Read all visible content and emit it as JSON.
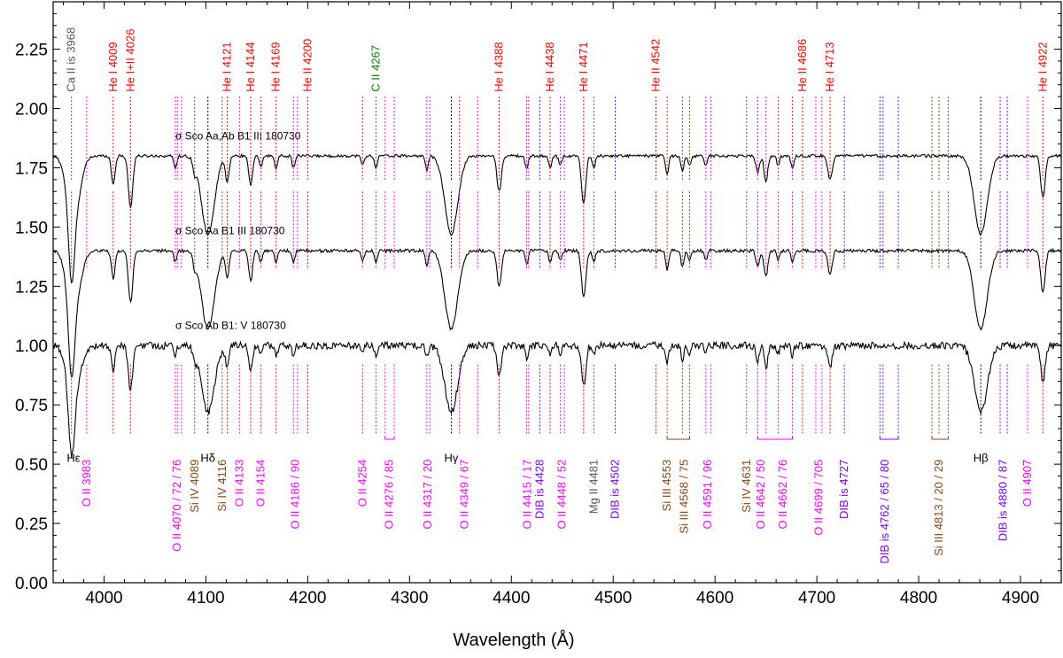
{
  "chart_data": {
    "type": "line",
    "xlabel": "Wavelength (Å)",
    "ylabel": "",
    "xlim": [
      3950,
      4940
    ],
    "ylim": [
      0.0,
      2.45
    ],
    "x_ticks": [
      4000,
      4100,
      4200,
      4300,
      4400,
      4500,
      4600,
      4700,
      4800,
      4900
    ],
    "y_ticks": [
      0.0,
      0.25,
      0.5,
      0.75,
      1.0,
      1.25,
      1.5,
      1.75,
      2.0,
      2.25
    ],
    "x_tick_labels": [
      "4000",
      "4100",
      "4200",
      "4300",
      "4400",
      "4500",
      "4600",
      "4700",
      "4800",
      "4900"
    ],
    "y_tick_labels": [
      "0.00",
      "0.25",
      "0.50",
      "0.75",
      "1.00",
      "1.25",
      "1.50",
      "1.75",
      "2.00",
      "2.25"
    ],
    "colors": {
      "he": "#ff0000",
      "ca": "#555555",
      "c": "#008800",
      "o": "#ff00ff",
      "si": "#8b4513",
      "dib": "#8000ff",
      "mg": "#555555",
      "h": "#000000",
      "spectrum": "#000000"
    },
    "series": [
      {
        "name": "σ Sco Aa,Ab   B1 III 180730",
        "continuum": 1.8,
        "noise": 0.012,
        "depth_scale": 1.0,
        "label_x": 4070,
        "label_y": 1.87
      },
      {
        "name": "σ Sco Aa   B1 III 180730",
        "continuum": 1.4,
        "noise": 0.014,
        "depth_scale": 1.0,
        "label_x": 4070,
        "label_y": 1.47
      },
      {
        "name": "σ Sco Ab   B1: V 180730",
        "continuum": 1.0,
        "noise": 0.03,
        "depth_scale": 0.85,
        "label_x": 4070,
        "label_y": 1.07
      }
    ],
    "lines_top": [
      {
        "label": "Ca II is 3968",
        "wl": 3968,
        "group": "ca"
      },
      {
        "label": "He I 4009",
        "wl": 4009,
        "group": "he"
      },
      {
        "label": "He I+II 4026",
        "wl": 4026,
        "group": "he"
      },
      {
        "label": "He I 4121",
        "wl": 4121,
        "group": "he"
      },
      {
        "label": "He I 4144",
        "wl": 4144,
        "group": "he"
      },
      {
        "label": "He I 4169",
        "wl": 4169,
        "group": "he"
      },
      {
        "label": "He II 4200",
        "wl": 4200,
        "group": "he"
      },
      {
        "label": "C II 4267",
        "wl": 4267,
        "group": "c"
      },
      {
        "label": "He I 4388",
        "wl": 4388,
        "group": "he"
      },
      {
        "label": "He I 4438",
        "wl": 4438,
        "group": "he"
      },
      {
        "label": "He I 4471",
        "wl": 4471,
        "group": "he"
      },
      {
        "label": "He II 4542",
        "wl": 4542,
        "group": "he"
      },
      {
        "label": "He II 4686",
        "wl": 4686,
        "group": "he"
      },
      {
        "label": "He I 4713",
        "wl": 4713,
        "group": "he"
      },
      {
        "label": "He I 4922",
        "wl": 4922,
        "group": "he"
      }
    ],
    "lines_bottom": [
      {
        "label": "Hε",
        "wl": 3970,
        "group": "h",
        "horizontal": true
      },
      {
        "label": "O II 3983",
        "wl": 3983,
        "group": "o"
      },
      {
        "label": "O II 4070 / 72 / 76",
        "wl": 4072,
        "group": "o"
      },
      {
        "label": "Si IV 4089",
        "wl": 4089,
        "group": "si"
      },
      {
        "label": "Hδ",
        "wl": 4102,
        "group": "h",
        "horizontal": true
      },
      {
        "label": "Si IV 4116",
        "wl": 4116,
        "group": "si"
      },
      {
        "label": "O II 4133",
        "wl": 4133,
        "group": "o"
      },
      {
        "label": "O II 4154",
        "wl": 4154,
        "group": "o"
      },
      {
        "label": "O II 4186 / 90",
        "wl": 4188,
        "group": "o"
      },
      {
        "label": "O II 4254",
        "wl": 4254,
        "group": "o"
      },
      {
        "label": "O II 4276 / 85",
        "wl": 4280,
        "group": "o"
      },
      {
        "label": "O II 4317 / 20",
        "wl": 4318,
        "group": "o"
      },
      {
        "label": "Hγ",
        "wl": 4341,
        "group": "h",
        "horizontal": true
      },
      {
        "label": "O II 4349 / 67",
        "wl": 4354,
        "group": "o"
      },
      {
        "label": "O II 4415 / 17",
        "wl": 4416,
        "group": "o"
      },
      {
        "label": "DIB is 4428",
        "wl": 4428,
        "group": "dib"
      },
      {
        "label": "O II 4448 / 52",
        "wl": 4450,
        "group": "o"
      },
      {
        "label": "Mg II 4481",
        "wl": 4481,
        "group": "mg"
      },
      {
        "label": "DIB is 4502",
        "wl": 4502,
        "group": "dib"
      },
      {
        "label": "Si III 4553",
        "wl": 4553,
        "group": "si"
      },
      {
        "label": "Si III 4568 / 75",
        "wl": 4570,
        "group": "si"
      },
      {
        "label": "O II 4591 / 96",
        "wl": 4593,
        "group": "o"
      },
      {
        "label": "Si IV 4631",
        "wl": 4631,
        "group": "si"
      },
      {
        "label": "O II 4642 / 50",
        "wl": 4645,
        "group": "o"
      },
      {
        "label": "O II 4662 / 76",
        "wl": 4667,
        "group": "o"
      },
      {
        "label": "O II 4699 / 705",
        "wl": 4702,
        "group": "o"
      },
      {
        "label": "DIB is 4727",
        "wl": 4727,
        "group": "dib"
      },
      {
        "label": "DIB is 4762 / 65 / 80",
        "wl": 4767,
        "group": "dib"
      },
      {
        "label": "Si III 4813 / 20 / 29",
        "wl": 4820,
        "group": "si"
      },
      {
        "label": "Hβ",
        "wl": 4861,
        "group": "h",
        "horizontal": true
      },
      {
        "label": "DIB is 4880 / 87",
        "wl": 4883,
        "group": "dib"
      },
      {
        "label": "O II 4907",
        "wl": 4907,
        "group": "o"
      }
    ],
    "marker_lines": [
      {
        "wl": 3968,
        "group": "ca"
      },
      {
        "wl": 3983,
        "group": "o"
      },
      {
        "wl": 4009,
        "group": "he"
      },
      {
        "wl": 4026,
        "group": "he"
      },
      {
        "wl": 4070,
        "group": "o"
      },
      {
        "wl": 4072,
        "group": "o"
      },
      {
        "wl": 4076,
        "group": "o"
      },
      {
        "wl": 4089,
        "group": "si"
      },
      {
        "wl": 4102,
        "group": "h"
      },
      {
        "wl": 4116,
        "group": "si"
      },
      {
        "wl": 4121,
        "group": "he"
      },
      {
        "wl": 4133,
        "group": "o"
      },
      {
        "wl": 4144,
        "group": "he"
      },
      {
        "wl": 4154,
        "group": "o"
      },
      {
        "wl": 4169,
        "group": "he"
      },
      {
        "wl": 4186,
        "group": "o"
      },
      {
        "wl": 4190,
        "group": "o"
      },
      {
        "wl": 4200,
        "group": "he"
      },
      {
        "wl": 4254,
        "group": "o"
      },
      {
        "wl": 4267,
        "group": "c"
      },
      {
        "wl": 4276,
        "group": "o"
      },
      {
        "wl": 4285,
        "group": "o"
      },
      {
        "wl": 4317,
        "group": "o"
      },
      {
        "wl": 4320,
        "group": "o"
      },
      {
        "wl": 4341,
        "group": "h"
      },
      {
        "wl": 4349,
        "group": "o"
      },
      {
        "wl": 4367,
        "group": "o"
      },
      {
        "wl": 4388,
        "group": "he"
      },
      {
        "wl": 4415,
        "group": "o"
      },
      {
        "wl": 4417,
        "group": "o"
      },
      {
        "wl": 4428,
        "group": "dib"
      },
      {
        "wl": 4438,
        "group": "he"
      },
      {
        "wl": 4448,
        "group": "o"
      },
      {
        "wl": 4452,
        "group": "o"
      },
      {
        "wl": 4471,
        "group": "he"
      },
      {
        "wl": 4481,
        "group": "mg"
      },
      {
        "wl": 4502,
        "group": "dib"
      },
      {
        "wl": 4542,
        "group": "he"
      },
      {
        "wl": 4553,
        "group": "si"
      },
      {
        "wl": 4568,
        "group": "si"
      },
      {
        "wl": 4575,
        "group": "si"
      },
      {
        "wl": 4591,
        "group": "o"
      },
      {
        "wl": 4596,
        "group": "o"
      },
      {
        "wl": 4631,
        "group": "si"
      },
      {
        "wl": 4642,
        "group": "o"
      },
      {
        "wl": 4650,
        "group": "o"
      },
      {
        "wl": 4662,
        "group": "o"
      },
      {
        "wl": 4676,
        "group": "o"
      },
      {
        "wl": 4686,
        "group": "he"
      },
      {
        "wl": 4699,
        "group": "o"
      },
      {
        "wl": 4705,
        "group": "o"
      },
      {
        "wl": 4713,
        "group": "he"
      },
      {
        "wl": 4727,
        "group": "dib"
      },
      {
        "wl": 4762,
        "group": "dib"
      },
      {
        "wl": 4765,
        "group": "dib"
      },
      {
        "wl": 4780,
        "group": "dib"
      },
      {
        "wl": 4813,
        "group": "si"
      },
      {
        "wl": 4820,
        "group": "si"
      },
      {
        "wl": 4829,
        "group": "si"
      },
      {
        "wl": 4861,
        "group": "h"
      },
      {
        "wl": 4880,
        "group": "dib"
      },
      {
        "wl": 4887,
        "group": "dib"
      },
      {
        "wl": 4907,
        "group": "o"
      },
      {
        "wl": 4922,
        "group": "he"
      }
    ],
    "brackets": [
      {
        "wl_start": 4276,
        "wl_end": 4285,
        "group": "o"
      },
      {
        "wl_start": 4553,
        "wl_end": 4575,
        "group": "si"
      },
      {
        "wl_start": 4642,
        "wl_end": 4676,
        "group": "o"
      },
      {
        "wl_start": 4762,
        "wl_end": 4780,
        "group": "dib"
      },
      {
        "wl_start": 4813,
        "wl_end": 4829,
        "group": "si"
      }
    ],
    "absorption": [
      {
        "wl": 3968,
        "depth": 0.3,
        "width": 4
      },
      {
        "wl": 3970,
        "depth": 0.25,
        "width": 9
      },
      {
        "wl": 4009,
        "depth": 0.12,
        "width": 2.5
      },
      {
        "wl": 4026,
        "depth": 0.22,
        "width": 3
      },
      {
        "wl": 4070,
        "depth": 0.05,
        "width": 2
      },
      {
        "wl": 4089,
        "depth": 0.05,
        "width": 2
      },
      {
        "wl": 4102,
        "depth": 0.33,
        "width": 9
      },
      {
        "wl": 4121,
        "depth": 0.11,
        "width": 2.5
      },
      {
        "wl": 4144,
        "depth": 0.13,
        "width": 2.5
      },
      {
        "wl": 4154,
        "depth": 0.05,
        "width": 2
      },
      {
        "wl": 4169,
        "depth": 0.05,
        "width": 2
      },
      {
        "wl": 4186,
        "depth": 0.05,
        "width": 2
      },
      {
        "wl": 4254,
        "depth": 0.04,
        "width": 2
      },
      {
        "wl": 4267,
        "depth": 0.05,
        "width": 2
      },
      {
        "wl": 4317,
        "depth": 0.06,
        "width": 2
      },
      {
        "wl": 4341,
        "depth": 0.33,
        "width": 9
      },
      {
        "wl": 4388,
        "depth": 0.15,
        "width": 3
      },
      {
        "wl": 4415,
        "depth": 0.06,
        "width": 2
      },
      {
        "wl": 4438,
        "depth": 0.05,
        "width": 2
      },
      {
        "wl": 4448,
        "depth": 0.04,
        "width": 2
      },
      {
        "wl": 4471,
        "depth": 0.2,
        "width": 3
      },
      {
        "wl": 4481,
        "depth": 0.05,
        "width": 2
      },
      {
        "wl": 4553,
        "depth": 0.08,
        "width": 2
      },
      {
        "wl": 4568,
        "depth": 0.07,
        "width": 2
      },
      {
        "wl": 4575,
        "depth": 0.04,
        "width": 2
      },
      {
        "wl": 4591,
        "depth": 0.04,
        "width": 2
      },
      {
        "wl": 4642,
        "depth": 0.07,
        "width": 2.5
      },
      {
        "wl": 4650,
        "depth": 0.11,
        "width": 2.5
      },
      {
        "wl": 4662,
        "depth": 0.04,
        "width": 2
      },
      {
        "wl": 4676,
        "depth": 0.05,
        "width": 2
      },
      {
        "wl": 4713,
        "depth": 0.1,
        "width": 3
      },
      {
        "wl": 4861,
        "depth": 0.33,
        "width": 9
      },
      {
        "wl": 4922,
        "depth": 0.18,
        "width": 3
      }
    ]
  }
}
